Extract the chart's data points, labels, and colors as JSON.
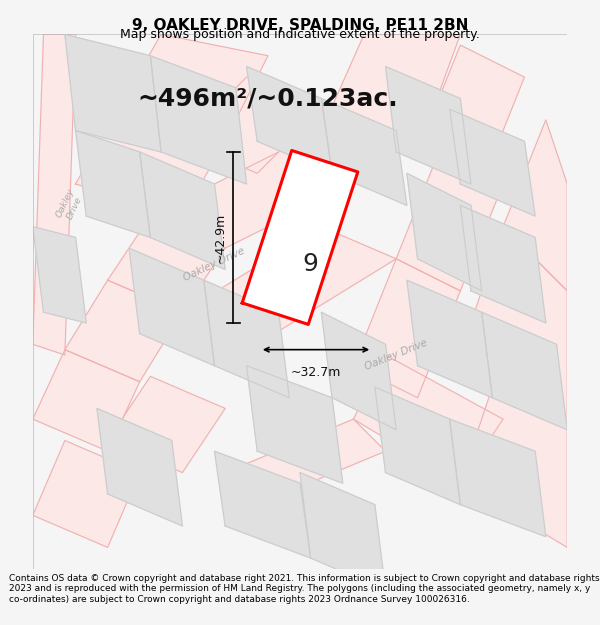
{
  "title": "9, OAKLEY DRIVE, SPALDING, PE11 2BN",
  "subtitle": "Map shows position and indicative extent of the property.",
  "area_text": "~496m²/~0.123ac.",
  "width_label": "~32.7m",
  "height_label": "~42.9m",
  "property_number": "9",
  "footer": "Contains OS data © Crown copyright and database right 2021. This information is subject to Crown copyright and database rights 2023 and is reproduced with the permission of HM Land Registry. The polygons (including the associated geometry, namely x, y co-ordinates) are subject to Crown copyright and database rights 2023 Ordnance Survey 100026316.",
  "bg_color": "#f5f5f5",
  "map_bg": "#ffffff",
  "road_line_color": "#f0b0b0",
  "road_fill_color": "#fde8e8",
  "property_color": "#ff0000",
  "building_fill": "#e0e0e0",
  "building_stroke": "#cccccc",
  "road_label_color": "#aaaaaa",
  "title_color": "#000000",
  "footer_color": "#000000",
  "title_fontsize": 11,
  "subtitle_fontsize": 9,
  "area_fontsize": 18,
  "measurement_fontsize": 9,
  "property_num_fontsize": 18,
  "footer_fontsize": 6.5
}
